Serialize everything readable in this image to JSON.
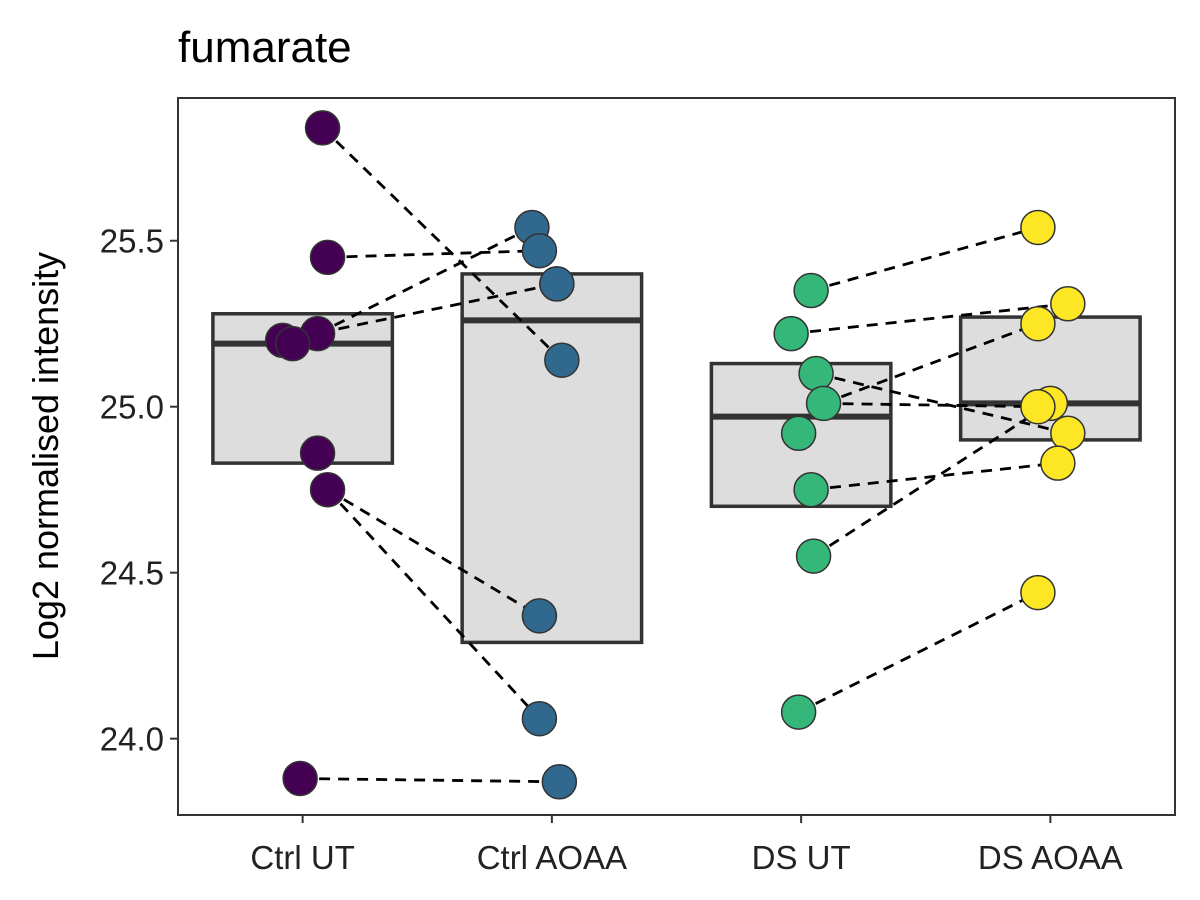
{
  "chart_data": {
    "type": "box",
    "title": "fumarate",
    "xlabel": "",
    "ylabel": "Log2 normalised intensity",
    "categories": [
      "Ctrl UT",
      "Ctrl AOAA",
      "DS UT",
      "DS AOAA"
    ],
    "ylim": [
      23.77,
      25.93
    ],
    "yticks": [
      24.0,
      24.5,
      25.0,
      25.5
    ],
    "ytick_labels": [
      "24.0",
      "24.5",
      "25.0",
      "25.5"
    ],
    "grid": false,
    "legend": "none",
    "colors": [
      "#440154",
      "#31688E",
      "#35B779",
      "#FDE725"
    ],
    "box_fill": "#DDDDDD",
    "boxes": [
      {
        "group": "Ctrl UT",
        "q1": 24.83,
        "median": 25.19,
        "q3": 25.28
      },
      {
        "group": "Ctrl AOAA",
        "q1": 24.29,
        "median": 25.26,
        "q3": 25.4
      },
      {
        "group": "DS UT",
        "q1": 24.7,
        "median": 24.97,
        "q3": 25.13
      },
      {
        "group": "DS AOAA",
        "q1": 24.9,
        "median": 25.01,
        "q3": 25.27
      }
    ],
    "points": [
      {
        "group": "Ctrl UT",
        "values": [
          25.84,
          25.45,
          25.22,
          25.2,
          25.19,
          24.86,
          24.75,
          23.88
        ],
        "jitter": [
          0.08,
          0.1,
          0.06,
          -0.08,
          -0.04,
          0.06,
          0.1,
          -0.01
        ]
      },
      {
        "group": "Ctrl AOAA",
        "values": [
          25.54,
          25.47,
          25.37,
          25.37,
          25.14,
          24.37,
          24.06,
          23.87
        ],
        "jitter": [
          -0.08,
          -0.05,
          0.04,
          0.02,
          0.04,
          -0.05,
          -0.05,
          0.03
        ]
      },
      {
        "group": "DS UT",
        "values": [
          25.35,
          25.22,
          25.1,
          25.01,
          24.92,
          24.75,
          24.55,
          24.08
        ],
        "jitter": [
          0.04,
          -0.04,
          0.06,
          0.09,
          -0.01,
          0.04,
          0.05,
          -0.01
        ]
      },
      {
        "group": "DS AOAA",
        "values": [
          25.54,
          25.31,
          25.25,
          25.01,
          25.0,
          24.92,
          24.83,
          24.44
        ],
        "jitter": [
          -0.05,
          0.07,
          -0.05,
          0.0,
          -0.05,
          0.07,
          0.03,
          -0.05
        ]
      }
    ],
    "pairs": [
      {
        "from": [
          "Ctrl UT",
          25.84
        ],
        "to": [
          "Ctrl AOAA",
          25.14
        ]
      },
      {
        "from": [
          "Ctrl UT",
          25.45
        ],
        "to": [
          "Ctrl AOAA",
          25.47
        ]
      },
      {
        "from": [
          "Ctrl UT",
          25.22
        ],
        "to": [
          "Ctrl AOAA",
          25.54
        ]
      },
      {
        "from": [
          "Ctrl UT",
          25.2
        ],
        "to": [
          "Ctrl AOAA",
          25.37
        ]
      },
      {
        "from": [
          "Ctrl UT",
          24.75
        ],
        "to": [
          "Ctrl AOAA",
          24.37
        ]
      },
      {
        "from": [
          "Ctrl UT",
          24.75
        ],
        "to": [
          "Ctrl AOAA",
          24.06
        ]
      },
      {
        "from": [
          "Ctrl UT",
          23.88
        ],
        "to": [
          "Ctrl AOAA",
          23.87
        ]
      },
      {
        "from": [
          "DS UT",
          25.35
        ],
        "to": [
          "DS AOAA",
          25.54
        ]
      },
      {
        "from": [
          "DS UT",
          25.22
        ],
        "to": [
          "DS AOAA",
          25.31
        ]
      },
      {
        "from": [
          "DS UT",
          25.1
        ],
        "to": [
          "DS AOAA",
          24.92
        ]
      },
      {
        "from": [
          "DS UT",
          25.01
        ],
        "to": [
          "DS AOAA",
          25.25
        ]
      },
      {
        "from": [
          "DS UT",
          25.01
        ],
        "to": [
          "DS AOAA",
          25.0
        ]
      },
      {
        "from": [
          "DS UT",
          24.75
        ],
        "to": [
          "DS AOAA",
          24.83
        ]
      },
      {
        "from": [
          "DS UT",
          24.55
        ],
        "to": [
          "DS AOAA",
          25.01
        ]
      },
      {
        "from": [
          "DS UT",
          24.08
        ],
        "to": [
          "DS AOAA",
          24.44
        ]
      }
    ]
  }
}
